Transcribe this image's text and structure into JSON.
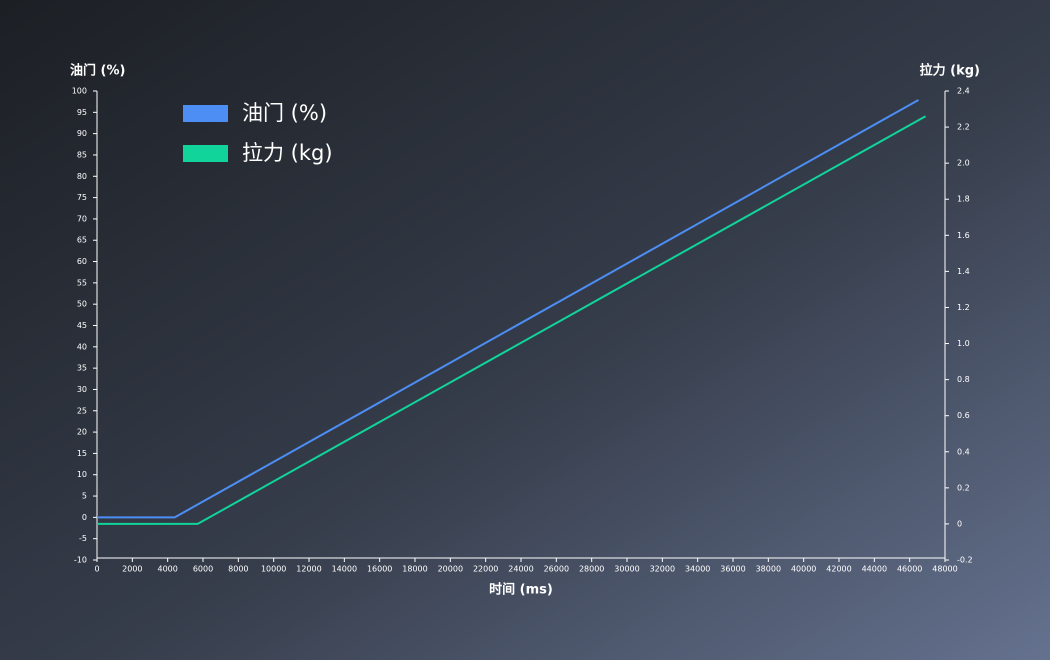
{
  "chart_data": {
    "type": "line",
    "xlabel": "时间 (ms)",
    "ylabel": "油门 (%)",
    "y2label": "拉力 (kg)",
    "series": [
      {
        "name": "油门 (%)",
        "color": "#4d8ef5",
        "x": [
          0,
          4400,
          46500
        ],
        "values": [
          0,
          0,
          97.9
        ]
      },
      {
        "name": "拉力 (kg)",
        "color": "#10d49a",
        "axis": "y2",
        "x": [
          0,
          5700,
          46900
        ],
        "values": [
          0,
          0,
          2.26
        ]
      }
    ],
    "xlim": [
      0,
      48000
    ],
    "xticks": [
      0,
      2000,
      4000,
      6000,
      8000,
      10000,
      12000,
      14000,
      16000,
      18000,
      20000,
      22000,
      24000,
      26000,
      28000,
      30000,
      32000,
      34000,
      36000,
      38000,
      40000,
      42000,
      44000,
      46000,
      48000
    ],
    "ylim": [
      -10,
      100
    ],
    "yticks": [
      -10,
      -5,
      0,
      5,
      10,
      15,
      20,
      25,
      30,
      35,
      40,
      45,
      50,
      55,
      60,
      65,
      70,
      75,
      80,
      85,
      90,
      95,
      100
    ],
    "y2lim": [
      -0.2,
      2.4
    ],
    "y2ticks": [
      -0.2,
      0,
      0.2,
      0.4,
      0.6,
      0.8,
      {
        "value": 1,
        "label": "1.0"
      },
      1.2,
      1.4,
      1.6,
      1.8,
      {
        "value": 2,
        "label": "2.0"
      },
      2.2,
      2.4
    ],
    "legend": "upper left"
  }
}
